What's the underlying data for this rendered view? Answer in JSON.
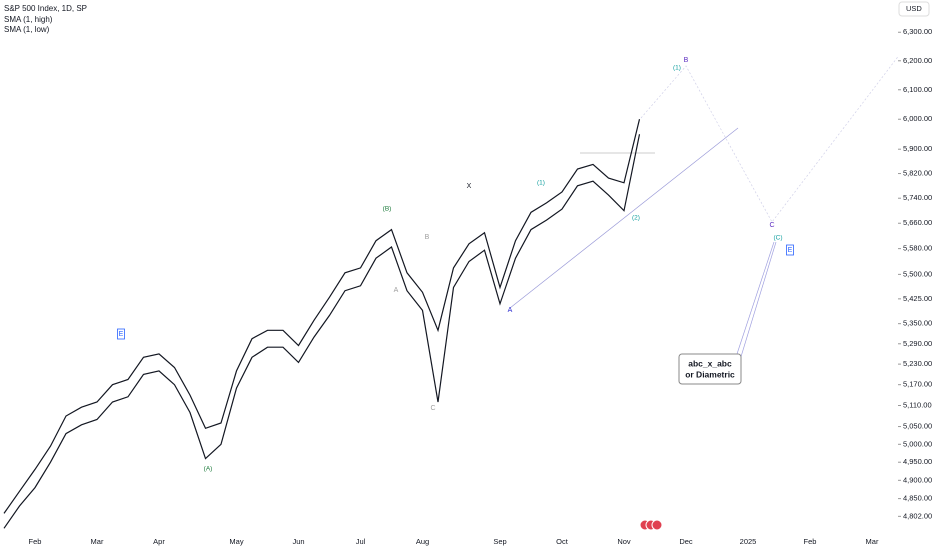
{
  "chart_data": {
    "type": "line",
    "title": "S&P 500 Index, 1D, SP",
    "ylabel": "USD",
    "log": true,
    "grid": false,
    "categories": [
      null,
      null,
      "Feb",
      null,
      null,
      null,
      "Mar",
      null,
      null,
      null,
      "Apr",
      null,
      null,
      null,
      null,
      "May",
      null,
      null,
      null,
      "Jun",
      null,
      null,
      null,
      "Jul",
      null,
      null,
      null,
      "Aug",
      null,
      null,
      null,
      null,
      "Sep",
      null,
      null,
      null,
      "Oct",
      null,
      null,
      null,
      "Nov",
      null,
      null,
      null,
      "Dec",
      null,
      null,
      null,
      "2025",
      null,
      null,
      null,
      "Feb",
      null,
      null,
      null,
      "Mar",
      null,
      null,
      null
    ],
    "series": [
      {
        "name": "SMA (1, high)",
        "color": "#131722",
        "values": [
          4810,
          4870,
          4930,
          4995,
          5080,
          5105,
          5120,
          5170,
          5185,
          5250,
          5260,
          5220,
          5140,
          5045,
          5060,
          5210,
          5305,
          5330,
          5330,
          5285,
          5360,
          5430,
          5505,
          5520,
          5605,
          5640,
          5505,
          5445,
          5330,
          5520,
          5595,
          5630,
          5460,
          5605,
          5695,
          5725,
          5760,
          5835,
          5850,
          5805,
          5790,
          6000,
          null,
          null,
          null,
          null,
          null,
          null,
          null,
          null,
          null,
          null,
          null,
          null,
          null,
          null,
          null,
          null,
          null,
          null
        ]
      },
      {
        "name": "SMA (1, low)",
        "color": "#131722",
        "values": [
          4770,
          4830,
          4880,
          4950,
          5030,
          5055,
          5070,
          5120,
          5135,
          5200,
          5210,
          5170,
          5090,
          4960,
          5000,
          5160,
          5250,
          5280,
          5280,
          5235,
          5310,
          5375,
          5450,
          5465,
          5550,
          5585,
          5450,
          5390,
          5120,
          5460,
          5540,
          5575,
          5410,
          5550,
          5640,
          5670,
          5705,
          5780,
          5795,
          5750,
          5700,
          5950,
          null,
          null,
          null,
          null,
          null,
          null,
          null,
          null,
          null,
          null,
          null,
          null,
          null,
          null,
          null,
          null,
          null,
          null
        ]
      }
    ],
    "ylim": [
      4760,
      6415
    ],
    "yticks": [
      {
        "value": 4802,
        "label": "4,802.00"
      },
      {
        "value": 4850,
        "label": "4,850.00"
      },
      {
        "value": 4900,
        "label": "4,900.00"
      },
      {
        "value": 4950,
        "label": "4,950.00"
      },
      {
        "value": 5000,
        "label": "5,000.00"
      },
      {
        "value": 5050,
        "label": "5,050.00"
      },
      {
        "value": 5110,
        "label": "5,110.00"
      },
      {
        "value": 5170,
        "label": "5,170.00"
      },
      {
        "value": 5230,
        "label": "5,230.00"
      },
      {
        "value": 5290,
        "label": "5,290.00"
      },
      {
        "value": 5350,
        "label": "5,350.00"
      },
      {
        "value": 5425,
        "label": "5,425.00"
      },
      {
        "value": 5500,
        "label": "5,500.00"
      },
      {
        "value": 5580,
        "label": "5,580.00"
      },
      {
        "value": 5660,
        "label": "5,660.00"
      },
      {
        "value": 5740,
        "label": "5,740.00"
      },
      {
        "value": 5820,
        "label": "5,820.00"
      },
      {
        "value": 5900,
        "label": "5,900.00"
      },
      {
        "value": 6000,
        "label": "6,000.00"
      },
      {
        "value": 6100,
        "label": "6,100.00"
      },
      {
        "value": 6200,
        "label": "6,200.00"
      },
      {
        "value": 6300,
        "label": "6,300.00"
      }
    ],
    "annotations": [
      {
        "text": "(A)",
        "color": "#1b7a3a"
      },
      {
        "text": "(B)",
        "color": "#1b7a3a"
      },
      {
        "text": "A",
        "color": "#9e9e9e"
      },
      {
        "text": "B",
        "color": "#9e9e9e"
      },
      {
        "text": "C",
        "color": "#9e9e9e"
      },
      {
        "text": "X",
        "color": "#131722"
      },
      {
        "text": "A",
        "color": "#2a2ad0"
      },
      {
        "text": "(1)",
        "color": "#12a0a0"
      },
      {
        "text": "(2)",
        "color": "#12a0a0"
      },
      {
        "text": "(1)",
        "color": "#12a0a0"
      },
      {
        "text": "B",
        "color": "#5b2bc0"
      },
      {
        "text": "C",
        "color": "#5b2bc0"
      },
      {
        "text": "(C)",
        "color": "#12a0a0"
      },
      {
        "text": "E",
        "color": "#2962ff"
      },
      {
        "text": "E",
        "color": "#2962ff"
      }
    ],
    "note": [
      "abc_x_abc",
      "or Diametric"
    ]
  }
}
